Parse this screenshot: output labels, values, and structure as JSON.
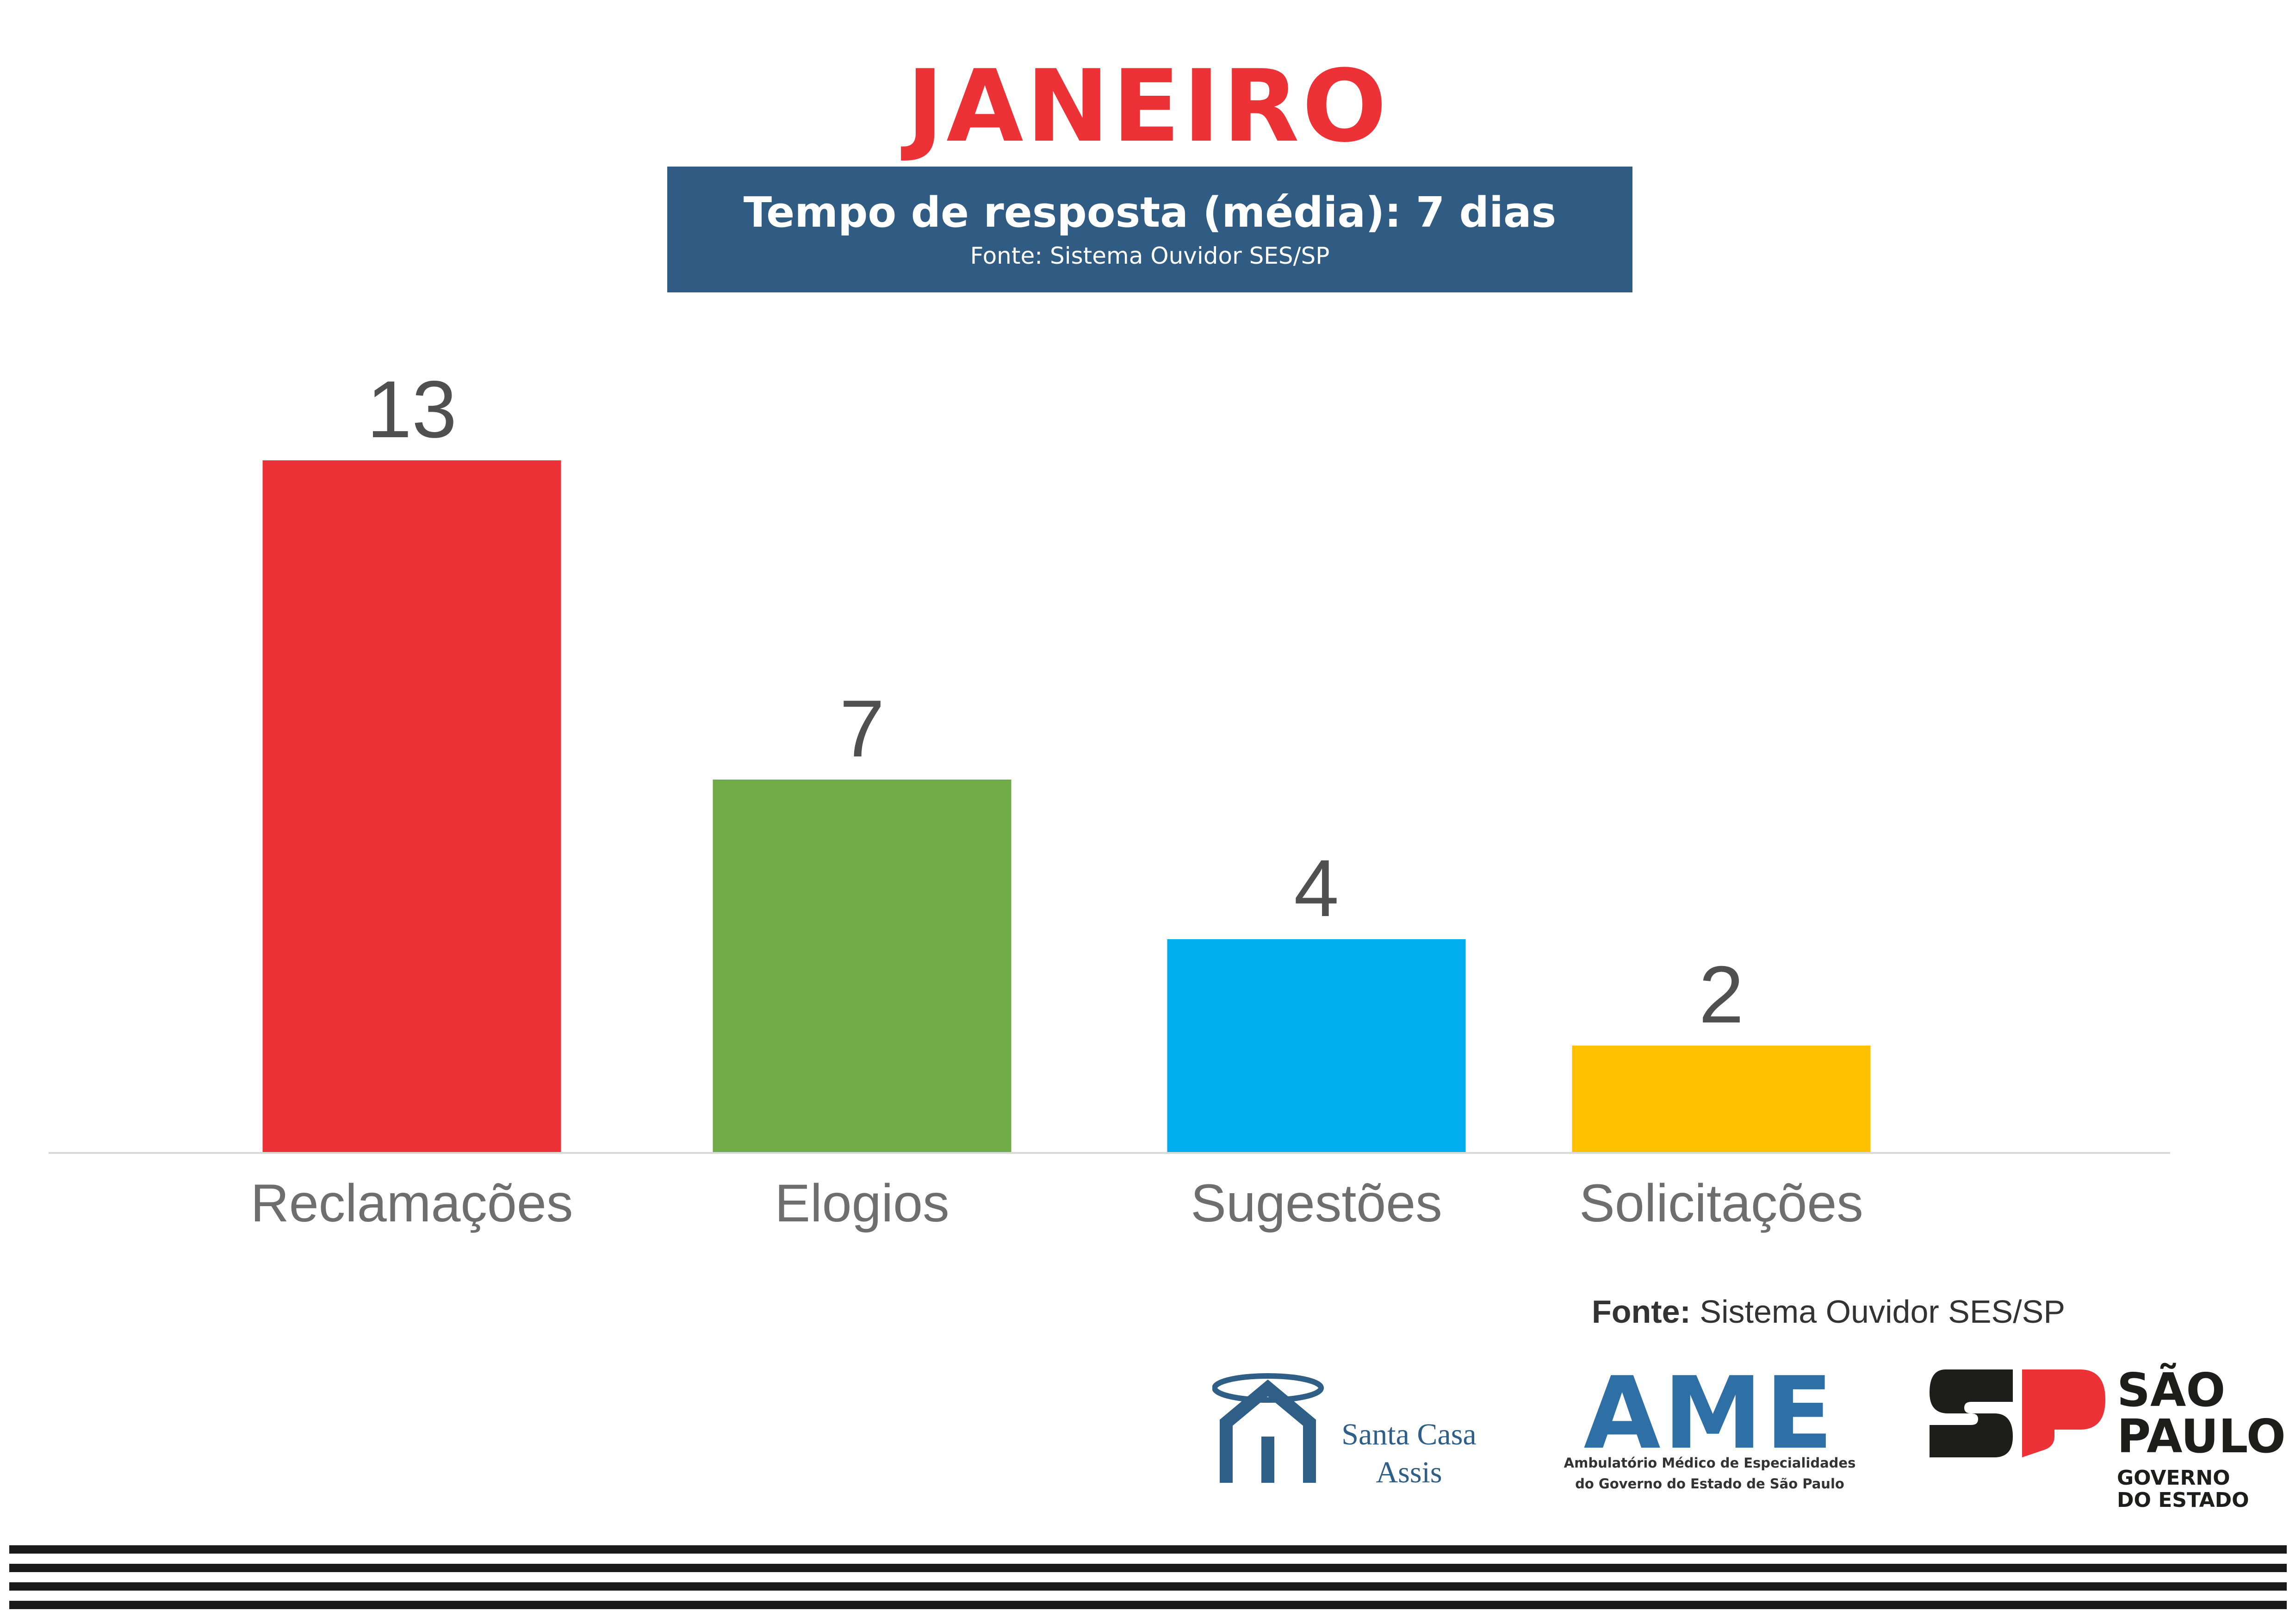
{
  "header": {
    "title": "JANEIRO",
    "title_color": "#ed3237",
    "banner_main": "Tempo de resposta (média): 7 dias",
    "banner_sub": "Fonte: Sistema Ouvidor SES/SP",
    "banner_color": "#305c84"
  },
  "chart_data": {
    "type": "bar",
    "categories": [
      "Reclamações",
      "Elogios",
      "Sugestões",
      "Solicitações"
    ],
    "values": [
      13,
      7,
      4,
      2
    ],
    "colors": [
      "#ed3237",
      "#71ab48",
      "#00aeef",
      "#ffc000"
    ],
    "data_labels": true,
    "grid": false,
    "legend": "none",
    "ylim": [
      0,
      13
    ]
  },
  "footer": {
    "source_bold": "Fonte:",
    "source_rest": " Sistema Ouvidor SES/SP"
  },
  "logos": {
    "santa_casa_line1": "Santa Casa",
    "santa_casa_line2": "Assis",
    "ame_word": "AME",
    "ame_caption_line1": "Ambulatório Médico de Especialidades",
    "ame_caption_line2": "do Governo do Estado de São Paulo",
    "sp_line1": "SÃO",
    "sp_line2": "PAULO",
    "sp_line3": "GOVERNO",
    "sp_line4": "DO ESTADO"
  }
}
